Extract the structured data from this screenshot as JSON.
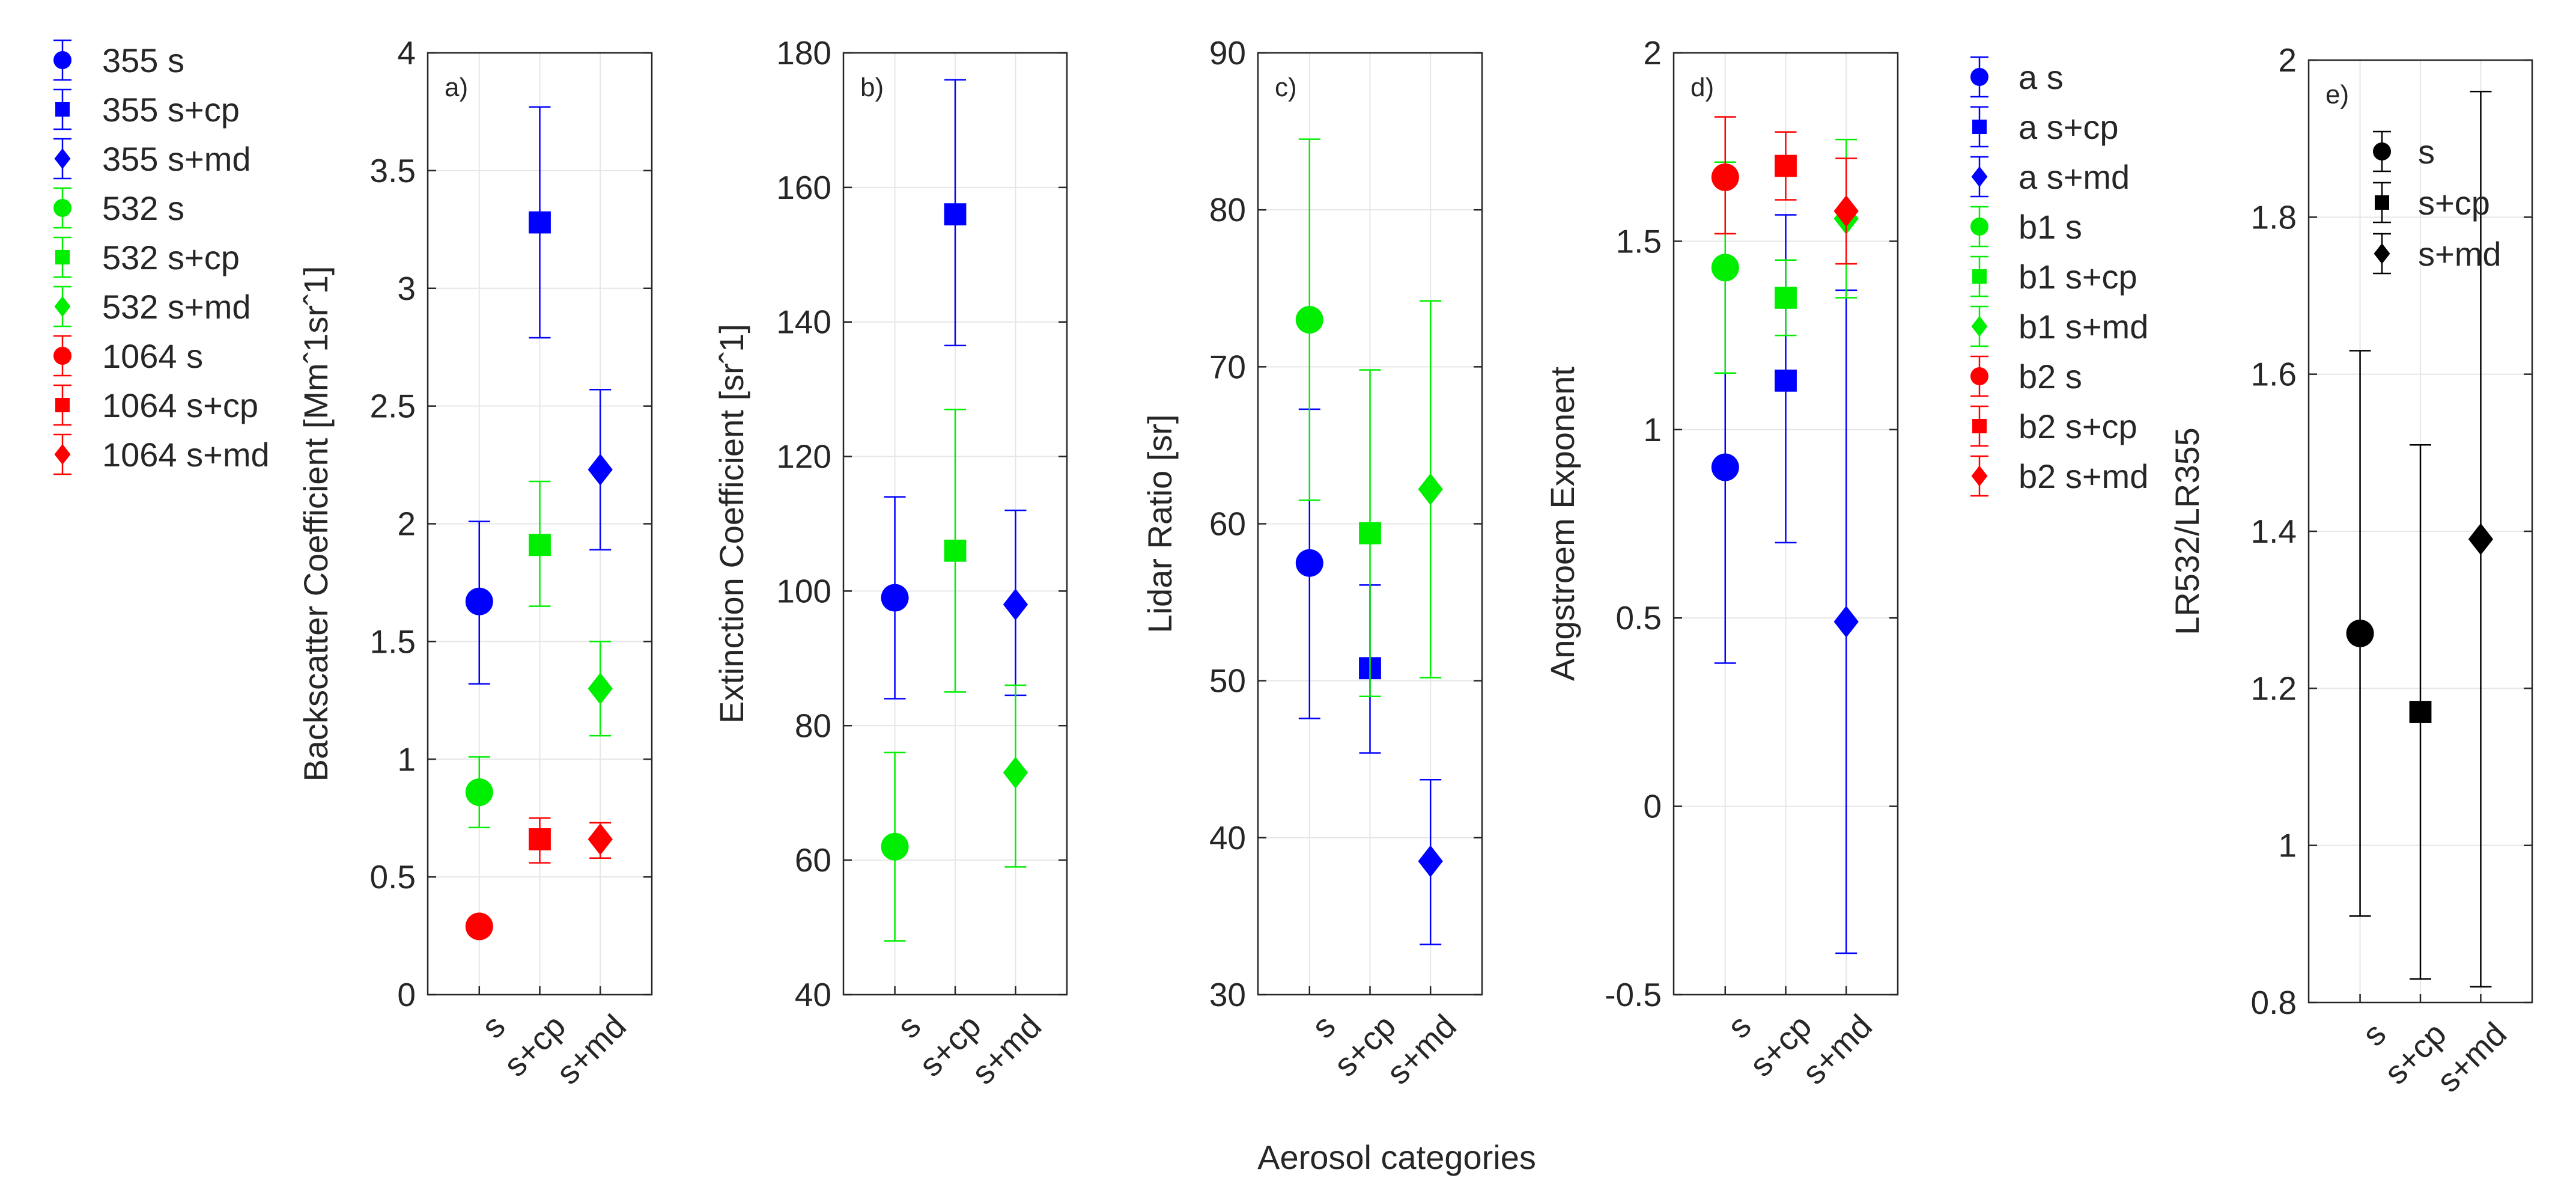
{
  "figure": {
    "xlabel": "Aerosol categories",
    "categories": [
      "s",
      "s+cp",
      "s+md"
    ]
  },
  "legend_left": [
    {
      "label": "355 s",
      "color": "#0000ff",
      "marker": "circle"
    },
    {
      "label": "355 s+cp",
      "color": "#0000ff",
      "marker": "square"
    },
    {
      "label": "355 s+md",
      "color": "#0000ff",
      "marker": "diamond"
    },
    {
      "label": "532 s",
      "color": "#00ee00",
      "marker": "circle"
    },
    {
      "label": "532 s+cp",
      "color": "#00ee00",
      "marker": "square"
    },
    {
      "label": "532 s+md",
      "color": "#00ee00",
      "marker": "diamond"
    },
    {
      "label": "1064 s",
      "color": "#ff0000",
      "marker": "circle"
    },
    {
      "label": "1064 s+cp",
      "color": "#ff0000",
      "marker": "square"
    },
    {
      "label": "1064 s+md",
      "color": "#ff0000",
      "marker": "diamond"
    }
  ],
  "legend_ae": [
    {
      "label": "a s",
      "color": "#0000ff",
      "marker": "circle"
    },
    {
      "label": "a s+cp",
      "color": "#0000ff",
      "marker": "square"
    },
    {
      "label": "a s+md",
      "color": "#0000ff",
      "marker": "diamond"
    },
    {
      "label": "b1 s",
      "color": "#00ee00",
      "marker": "circle"
    },
    {
      "label": "b1 s+cp",
      "color": "#00ee00",
      "marker": "square"
    },
    {
      "label": "b1 s+md",
      "color": "#00ee00",
      "marker": "diamond"
    },
    {
      "label": "b2 s",
      "color": "#ff0000",
      "marker": "circle"
    },
    {
      "label": "b2 s+cp",
      "color": "#ff0000",
      "marker": "square"
    },
    {
      "label": "b2 s+md",
      "color": "#ff0000",
      "marker": "diamond"
    }
  ],
  "legend_ratio": [
    {
      "label": "s",
      "color": "#000000",
      "marker": "circle"
    },
    {
      "label": "s+cp",
      "color": "#000000",
      "marker": "square"
    },
    {
      "label": "s+md",
      "color": "#000000",
      "marker": "diamond"
    }
  ],
  "chart_data": [
    {
      "type": "scatter",
      "panel": "a)",
      "ylabel": "Backscatter Coefficient [Mmˆ1srˆ1]",
      "ylim": [
        0,
        4
      ],
      "yticks": [
        "0",
        "0.5",
        "1",
        "1.5",
        "2",
        "2.5",
        "3",
        "3.5",
        "4"
      ],
      "yticks_values": [
        0,
        0.5,
        1,
        1.5,
        2,
        2.5,
        3,
        3.5,
        4
      ],
      "series": [
        {
          "name": "355 s",
          "category": "s",
          "color": "#0000ff",
          "marker": "circle",
          "y": 1.67,
          "lo": 1.32,
          "hi": 2.01
        },
        {
          "name": "355 s+cp",
          "category": "s+cp",
          "color": "#0000ff",
          "marker": "square",
          "y": 3.28,
          "lo": 2.79,
          "hi": 3.77
        },
        {
          "name": "355 s+md",
          "category": "s+md",
          "color": "#0000ff",
          "marker": "diamond",
          "y": 2.23,
          "lo": 1.89,
          "hi": 2.57
        },
        {
          "name": "532 s",
          "category": "s",
          "color": "#00ee00",
          "marker": "circle",
          "y": 0.86,
          "lo": 0.71,
          "hi": 1.01
        },
        {
          "name": "532 s+cp",
          "category": "s+cp",
          "color": "#00ee00",
          "marker": "square",
          "y": 1.91,
          "lo": 1.65,
          "hi": 2.18
        },
        {
          "name": "532 s+md",
          "category": "s+md",
          "color": "#00ee00",
          "marker": "diamond",
          "y": 1.3,
          "lo": 1.1,
          "hi": 1.5
        },
        {
          "name": "1064 s",
          "category": "s",
          "color": "#ff0000",
          "marker": "circle",
          "y": 0.29,
          "lo": 0.29,
          "hi": 0.29
        },
        {
          "name": "1064 s+cp",
          "category": "s+cp",
          "color": "#ff0000",
          "marker": "square",
          "y": 0.66,
          "lo": 0.56,
          "hi": 0.75
        },
        {
          "name": "1064 s+md",
          "category": "s+md",
          "color": "#ff0000",
          "marker": "diamond",
          "y": 0.66,
          "lo": 0.58,
          "hi": 0.73
        }
      ]
    },
    {
      "type": "scatter",
      "panel": "b)",
      "ylabel": "Extinction Coefficient [srˆ1]",
      "ylim": [
        40,
        180
      ],
      "yticks": [
        "40",
        "60",
        "80",
        "100",
        "120",
        "140",
        "160",
        "180"
      ],
      "yticks_values": [
        40,
        60,
        80,
        100,
        120,
        140,
        160,
        180
      ],
      "series": [
        {
          "name": "355 s",
          "category": "s",
          "color": "#0000ff",
          "marker": "circle",
          "y": 99,
          "lo": 84,
          "hi": 114
        },
        {
          "name": "355 s+cp",
          "category": "s+cp",
          "color": "#0000ff",
          "marker": "square",
          "y": 156,
          "lo": 136.5,
          "hi": 176
        },
        {
          "name": "355 s+md",
          "category": "s+md",
          "color": "#0000ff",
          "marker": "diamond",
          "y": 98,
          "lo": 84.5,
          "hi": 112
        },
        {
          "name": "532 s",
          "category": "s",
          "color": "#00ee00",
          "marker": "circle",
          "y": 62,
          "lo": 48,
          "hi": 76
        },
        {
          "name": "532 s+cp",
          "category": "s+cp",
          "color": "#00ee00",
          "marker": "square",
          "y": 106,
          "lo": 85,
          "hi": 127
        },
        {
          "name": "532 s+md",
          "category": "s+md",
          "color": "#00ee00",
          "marker": "diamond",
          "y": 73,
          "lo": 59,
          "hi": 86
        }
      ]
    },
    {
      "type": "scatter",
      "panel": "c)",
      "ylabel": "Lidar Ratio [sr]",
      "ylim": [
        30,
        90
      ],
      "yticks": [
        "30",
        "40",
        "50",
        "60",
        "70",
        "80",
        "90"
      ],
      "yticks_values": [
        30,
        40,
        50,
        60,
        70,
        80,
        90
      ],
      "series": [
        {
          "name": "355 s",
          "category": "s",
          "color": "#0000ff",
          "marker": "circle",
          "y": 57.5,
          "lo": 47.6,
          "hi": 67.3
        },
        {
          "name": "355 s+cp",
          "category": "s+cp",
          "color": "#0000ff",
          "marker": "square",
          "y": 50.8,
          "lo": 45.4,
          "hi": 56.1
        },
        {
          "name": "355 s+md",
          "category": "s+md",
          "color": "#0000ff",
          "marker": "diamond",
          "y": 38.5,
          "lo": 33.2,
          "hi": 43.7
        },
        {
          "name": "532 s",
          "category": "s",
          "color": "#00ee00",
          "marker": "circle",
          "y": 73,
          "lo": 61.5,
          "hi": 84.5
        },
        {
          "name": "532 s+cp",
          "category": "s+cp",
          "color": "#00ee00",
          "marker": "square",
          "y": 59.4,
          "lo": 49,
          "hi": 69.8
        },
        {
          "name": "532 s+md",
          "category": "s+md",
          "color": "#00ee00",
          "marker": "diamond",
          "y": 62.2,
          "lo": 50.2,
          "hi": 74.2
        }
      ]
    },
    {
      "type": "scatter",
      "panel": "d)",
      "ylabel": "Angstroem Exponent",
      "ylim": [
        -0.5,
        2
      ],
      "yticks": [
        "-0.5",
        "0",
        "0.5",
        "1",
        "1.5",
        "2"
      ],
      "yticks_values": [
        -0.5,
        0,
        0.5,
        1,
        1.5,
        2
      ],
      "series": [
        {
          "name": "a s",
          "category": "s",
          "color": "#0000ff",
          "marker": "circle",
          "y": 0.9,
          "lo": 0.38,
          "hi": 1.42
        },
        {
          "name": "a s+cp",
          "category": "s+cp",
          "color": "#0000ff",
          "marker": "square",
          "y": 1.13,
          "lo": 0.7,
          "hi": 1.57
        },
        {
          "name": "a s+md",
          "category": "s+md",
          "color": "#0000ff",
          "marker": "diamond",
          "y": 0.49,
          "lo": -0.39,
          "hi": 1.37
        },
        {
          "name": "b1 s",
          "category": "s",
          "color": "#00ee00",
          "marker": "circle",
          "y": 1.43,
          "lo": 1.15,
          "hi": 1.71
        },
        {
          "name": "b1 s+cp",
          "category": "s+cp",
          "color": "#00ee00",
          "marker": "square",
          "y": 1.35,
          "lo": 1.25,
          "hi": 1.45
        },
        {
          "name": "b1 s+md",
          "category": "s+md",
          "color": "#00ee00",
          "marker": "diamond",
          "y": 1.56,
          "lo": 1.35,
          "hi": 1.77
        },
        {
          "name": "b2 s",
          "category": "s",
          "color": "#ff0000",
          "marker": "circle",
          "y": 1.67,
          "lo": 1.52,
          "hi": 1.83
        },
        {
          "name": "b2 s+cp",
          "category": "s+cp",
          "color": "#ff0000",
          "marker": "square",
          "y": 1.7,
          "lo": 1.61,
          "hi": 1.79
        },
        {
          "name": "b2 s+md",
          "category": "s+md",
          "color": "#ff0000",
          "marker": "diamond",
          "y": 1.58,
          "lo": 1.44,
          "hi": 1.72
        }
      ]
    },
    {
      "type": "scatter",
      "panel": "e)",
      "ylabel": "LR532/LR355",
      "ylim": [
        0.8,
        2
      ],
      "yticks": [
        "0.8",
        "1",
        "1.2",
        "1.4",
        "1.6",
        "1.8",
        "2"
      ],
      "yticks_values": [
        0.8,
        1.0,
        1.2,
        1.4,
        1.6,
        1.8,
        2.0
      ],
      "series": [
        {
          "name": "s",
          "category": "s",
          "color": "#000000",
          "marker": "circle",
          "y": 1.27,
          "lo": 0.91,
          "hi": 1.63
        },
        {
          "name": "s+cp",
          "category": "s+cp",
          "color": "#000000",
          "marker": "square",
          "y": 1.17,
          "lo": 0.83,
          "hi": 1.51
        },
        {
          "name": "s+md",
          "category": "s+md",
          "color": "#000000",
          "marker": "diamond",
          "y": 1.39,
          "lo": 0.82,
          "hi": 1.96
        }
      ]
    }
  ]
}
